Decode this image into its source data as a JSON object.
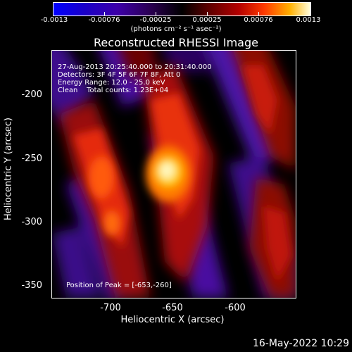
{
  "colorbar": {
    "ticks": [
      "-0.0013",
      "-0.00076",
      "-0.00025",
      "0.00025",
      "0.00076",
      "0.0013"
    ],
    "units": "(photons cm⁻² s⁻¹ asec⁻²)"
  },
  "image": {
    "title": "Reconstructed RHESSI Image",
    "annotations": {
      "time": "27-Aug-2013 20:25:40.000 to 20:31:40.000",
      "detectors": "Detectors: 3F 4F 5F 6F 7F 8F, Att 0",
      "energy": "Energy Range: 12.0 - 25.0 keV",
      "clean": "Clean    Total counts: 1.23E+04",
      "peak": "Position of Peak = [-653,-260]"
    },
    "x_axis": {
      "label": "Heliocentric X (arcsec)",
      "ticks": [
        "-700",
        "-650",
        "-600"
      ]
    },
    "y_axis": {
      "label": "Heliocentric Y (arcsec)",
      "ticks": [
        "-200",
        "-250",
        "-300",
        "-350"
      ]
    },
    "footer_date": "16-May-2022 10:29"
  }
}
